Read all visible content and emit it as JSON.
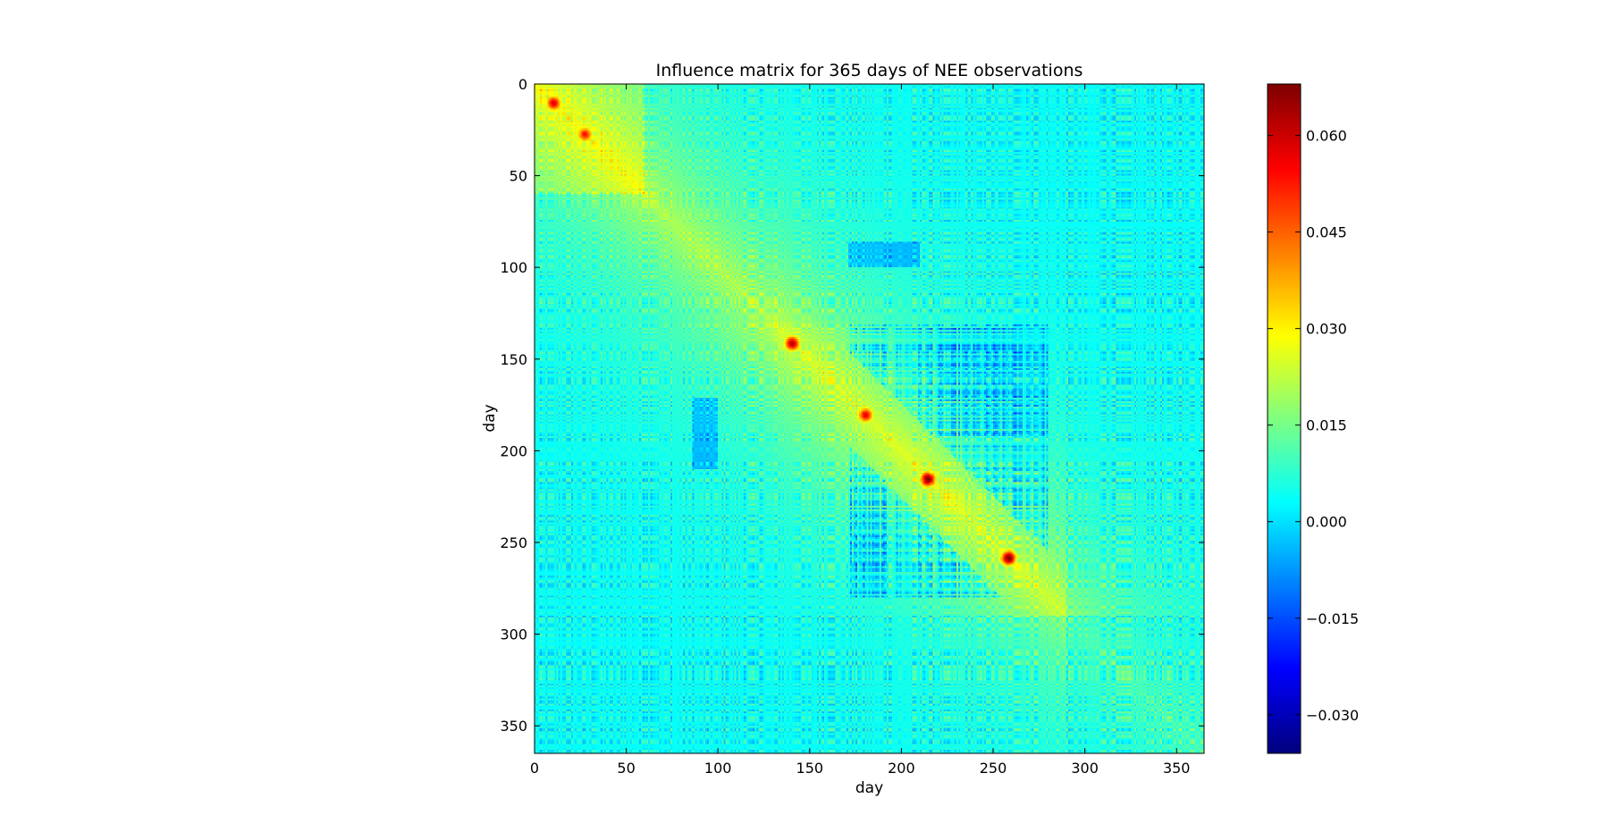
{
  "chart_data": {
    "type": "heatmap",
    "title": "Influence matrix for 365 days of NEE observations",
    "xlabel": "day",
    "ylabel": "day",
    "size": 365,
    "xlim": [
      0,
      365
    ],
    "ylim": [
      365,
      0
    ],
    "y_axis_inverted": true,
    "xticks": [
      0,
      50,
      100,
      150,
      200,
      250,
      300,
      350
    ],
    "yticks": [
      0,
      50,
      100,
      150,
      200,
      250,
      300,
      350
    ],
    "colormap": "jet",
    "value_range": [
      -0.036,
      0.068
    ],
    "colorbar_ticks": [
      "0.060",
      "0.045",
      "0.030",
      "0.015",
      "0.000",
      "−0.015",
      "−0.030"
    ],
    "colorbar_tick_values": [
      0.06,
      0.045,
      0.03,
      0.015,
      0.0,
      -0.015,
      -0.03
    ],
    "hotspots": [
      {
        "day_x": 10,
        "day_y": 10,
        "value": 0.05
      },
      {
        "day_x": 27,
        "day_y": 27,
        "value": 0.045
      },
      {
        "day_x": 140,
        "day_y": 141,
        "value": 0.055
      },
      {
        "day_x": 180,
        "day_y": 180,
        "value": 0.05
      },
      {
        "day_x": 214,
        "day_y": 215,
        "value": 0.06
      },
      {
        "day_x": 258,
        "day_y": 258,
        "value": 0.062
      }
    ],
    "blocks": [
      {
        "days": [
          0,
          60
        ],
        "value": 0.022
      },
      {
        "days": [
          60,
          130
        ],
        "value": 0.02
      },
      {
        "days": [
          130,
          195
        ],
        "value": 0.025
      },
      {
        "days": [
          195,
          235
        ],
        "value": 0.026
      },
      {
        "days": [
          235,
          290
        ],
        "value": 0.024
      },
      {
        "days": [
          290,
          365
        ],
        "value": 0.008
      }
    ],
    "notes_visible": "diagonal band of positive influence, strong negative cross-structure near days 180-270"
  }
}
